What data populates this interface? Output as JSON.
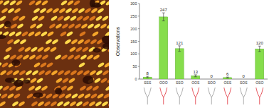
{
  "chart_data": {
    "type": "bar",
    "y_label": "Observations",
    "categories": [
      "SSS",
      "OOO",
      "SSO",
      "OOS",
      "SOO",
      "OSS",
      "SOS",
      "OSO"
    ],
    "values": [
      8,
      247,
      121,
      13,
      0,
      6,
      0,
      120
    ],
    "errors": [
      3,
      16,
      11,
      4,
      0,
      2,
      0,
      11
    ],
    "color": "#86dd4c",
    "ylim": [
      0,
      300
    ],
    "yticks": [
      0,
      50,
      100,
      150,
      200,
      250,
      300
    ],
    "grid": false,
    "data_labels": true
  }
}
